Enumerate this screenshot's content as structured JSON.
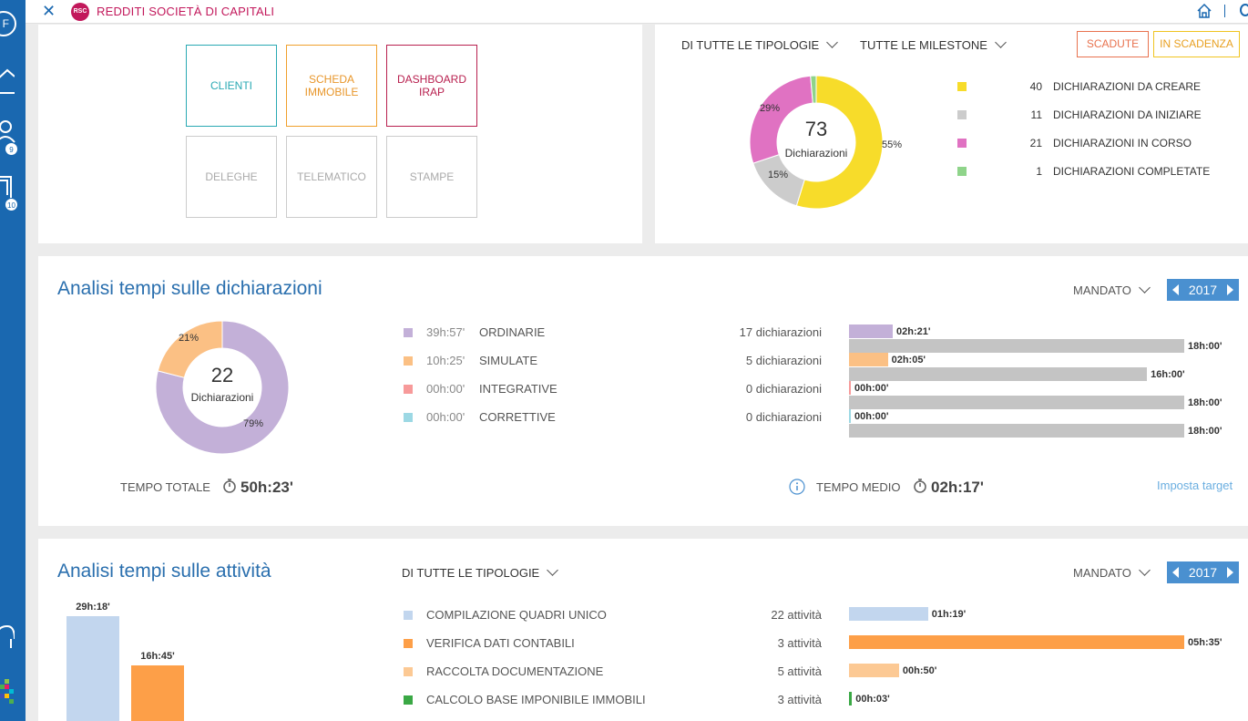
{
  "rail": {
    "avatar_initial": "F",
    "badges": [
      "9",
      "10"
    ]
  },
  "topbar": {
    "logo_text": "RSC",
    "title": "REDDITI SOCIETÀ DI CAPITALI"
  },
  "tiles": [
    "CLIENTI",
    "SCHEDA IMMOBILE",
    "DASHBOARD IRAP",
    "DELEGHE",
    "TELEMATICO",
    "STAMPE"
  ],
  "status_panel": {
    "filter_tipologie": "DI TUTTE LE TIPOLOGIE",
    "filter_milestone": "TUTTE LE MILESTONE",
    "btn_scadute": "SCADUTE",
    "btn_in_scadenza": "IN SCADENZA",
    "donut_total": "73",
    "donut_label": "Dichiarazioni",
    "legend": [
      {
        "count": "40",
        "label": "DICHIARAZIONI DA CREARE",
        "color": "#f7dc2a"
      },
      {
        "count": "11",
        "label": "DICHIARAZIONI DA INIZIARE",
        "color": "#cccccc"
      },
      {
        "count": "21",
        "label": "DICHIARAZIONI IN CORSO",
        "color": "#e072c2"
      },
      {
        "count": "1",
        "label": "DICHIARAZIONI COMPLETATE",
        "color": "#8fd48a"
      }
    ],
    "slices": [
      {
        "percent_label": "55%",
        "value": 40,
        "color": "#f7dc2a"
      },
      {
        "percent_label": "15%",
        "value": 11,
        "color": "#cccccc"
      },
      {
        "percent_label": "29%",
        "value": 21,
        "color": "#e072c2"
      },
      {
        "percent_label": "",
        "value": 1,
        "color": "#8fd48a"
      }
    ]
  },
  "dichiarazioni": {
    "title": "Analisi tempi sulle dichiarazioni",
    "mandato": "MANDATO",
    "year": "2017",
    "donut_total": "22",
    "donut_label": "Dichiarazioni",
    "slices": [
      {
        "percent_label": "79%",
        "value": 79,
        "color": "#c3b0d8"
      },
      {
        "percent_label": "21%",
        "value": 21,
        "color": "#fbc084"
      }
    ],
    "rows": [
      {
        "time": "39h:57'",
        "label": "ORDINARIE",
        "count": "17 dichiarazioni",
        "color": "#c3b0d8",
        "bar_value": "02h:21'",
        "bar_minutes": 141,
        "target": "18h:00'"
      },
      {
        "time": "10h:25'",
        "label": "SIMULATE",
        "count": "5 dichiarazioni",
        "color": "#fbc084",
        "bar_value": "02h:05'",
        "bar_minutes": 125,
        "target": "16h:00'"
      },
      {
        "time": "00h:00'",
        "label": "INTEGRATIVE",
        "count": "0 dichiarazioni",
        "color": "#f79a9a",
        "bar_value": "00h:00'",
        "bar_minutes": 0,
        "target": "18h:00'"
      },
      {
        "time": "00h:00'",
        "label": "CORRETTIVE",
        "count": "0 dichiarazioni",
        "color": "#9cd8e4",
        "bar_value": "00h:00'",
        "bar_minutes": 0,
        "target": "18h:00'"
      }
    ],
    "target_color": "#c4c4c4",
    "tempo_totale_label": "TEMPO TOTALE",
    "tempo_totale": "50h:23'",
    "tempo_medio_label": "TEMPO MEDIO",
    "tempo_medio": "02h:17'",
    "imposta_target": "Imposta target"
  },
  "attivita": {
    "title": "Analisi tempi sulle attività",
    "filter": "DI TUTTE LE TIPOLOGIE",
    "mandato": "MANDATO",
    "year": "2017",
    "columns": [
      {
        "value": "29h:18'",
        "color": "#c2d6ee"
      },
      {
        "value": "16h:45'",
        "color": "#fd9f48"
      }
    ],
    "rows": [
      {
        "label": "COMPILAZIONE QUADRI UNICO",
        "count": "22 attività",
        "color": "#c2d6ee",
        "bar_value": "01h:19'",
        "bar_minutes": 79
      },
      {
        "label": "VERIFICA DATI CONTABILI",
        "count": "3 attività",
        "color": "#fd9f48",
        "bar_value": "05h:35'",
        "bar_minutes": 335
      },
      {
        "label": "RACCOLTA DOCUMENTAZIONE",
        "count": "5 attività",
        "color": "#fcc994",
        "bar_value": "00h:50'",
        "bar_minutes": 50
      },
      {
        "label": "CALCOLO BASE IMPONIBILE IMMOBILI",
        "count": "3 attività",
        "color": "#3aa845",
        "bar_value": "00h:03'",
        "bar_minutes": 3
      }
    ]
  }
}
